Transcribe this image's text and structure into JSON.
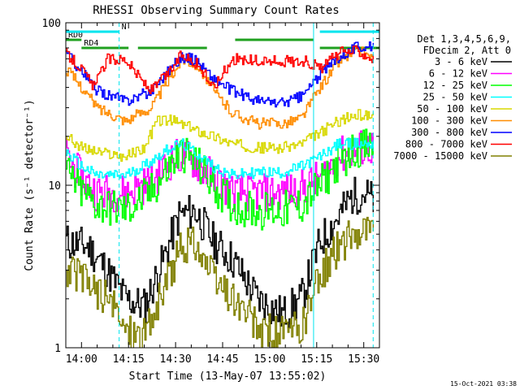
{
  "chart_data": {
    "type": "line",
    "title": "RHESSI Observing Summary Count Rates",
    "xlabel": "Start Time (13-May-07 13:55:02)",
    "ylabel": "Count Rate (s⁻¹ detector⁻¹)",
    "y_scale": "log",
    "ylim": [
      1,
      100
    ],
    "xlim": [
      "13:55",
      "15:35"
    ],
    "x_ticks": [
      "14:00",
      "14:15",
      "14:30",
      "14:45",
      "15:00",
      "15:15",
      "15:30"
    ],
    "y_ticks": [
      "1",
      "10",
      "100"
    ],
    "legend_header": [
      "Det 1,3,4,5,6,9,",
      "FDecim 2, Att 0"
    ],
    "legend_position": "top-right",
    "timestamp": "15-Oct-2021 03:38",
    "flags": [
      {
        "name": "RD0",
        "from": "13:55",
        "to": "14:00",
        "row": 1,
        "color": "#1fa01f"
      },
      {
        "name": "RD4",
        "from": "14:00",
        "to": "14:15",
        "row": 2,
        "color": "#1fa01f"
      },
      {
        "name": "",
        "from": "14:18",
        "to": "14:40",
        "row": 2,
        "color": "#1fa01f"
      },
      {
        "name": "",
        "from": "14:49",
        "to": "15:14",
        "row": 1,
        "color": "#1fa01f"
      },
      {
        "name": "",
        "from": "15:16",
        "to": "15:35",
        "row": 2,
        "color": "#1fa01f"
      },
      {
        "name": "N",
        "from": "13:55",
        "to": "14:12",
        "row": 0,
        "color": "#00e5ee"
      },
      {
        "name": "",
        "from": "15:16",
        "to": "15:35",
        "row": 0,
        "color": "#00e5ee"
      }
    ],
    "vlines": [
      {
        "time": "14:12",
        "color": "#00e5ee",
        "dash": true
      },
      {
        "time": "15:33",
        "color": "#00e5ee",
        "dash": true
      },
      {
        "time": "13:55",
        "color": "#00e5ee",
        "dash": false
      },
      {
        "time": "15:14",
        "color": "#00e5ee",
        "dash": false
      }
    ],
    "series": [
      {
        "name": "3 - 6 keV",
        "color": "#000000",
        "x": [
          "13:55",
          "14:02",
          "14:08",
          "14:14",
          "14:20",
          "14:26",
          "14:31",
          "14:36",
          "14:42",
          "14:48",
          "14:56",
          "15:04",
          "15:10",
          "15:16",
          "15:22",
          "15:26",
          "15:30",
          "15:33"
        ],
        "y": [
          4.5,
          4.2,
          3.0,
          2.0,
          1.8,
          3.5,
          6.5,
          7.0,
          4.5,
          3.5,
          2.0,
          1.6,
          2.0,
          4.5,
          6.5,
          8.5,
          9.0,
          8.0
        ]
      },
      {
        "name": "6 - 12 keV",
        "color": "#ff00ff",
        "x": [
          "13:55",
          "14:00",
          "14:05",
          "14:14",
          "14:22",
          "14:28",
          "14:32",
          "14:36",
          "14:42",
          "14:48",
          "14:56",
          "15:04",
          "15:10",
          "15:16",
          "15:22",
          "15:28",
          "15:33"
        ],
        "y": [
          15,
          11,
          9.0,
          9.0,
          10.5,
          14,
          15.5,
          14,
          11,
          9.0,
          9.0,
          9.0,
          9.5,
          11,
          15,
          17,
          17
        ]
      },
      {
        "name": "12 - 25 keV",
        "color": "#00ff00",
        "x": [
          "13:55",
          "14:00",
          "14:05",
          "14:14",
          "14:22",
          "14:28",
          "14:32",
          "14:36",
          "14:42",
          "14:48",
          "14:56",
          "15:04",
          "15:10",
          "15:16",
          "15:22",
          "15:28",
          "15:33"
        ],
        "y": [
          12,
          9.0,
          7.5,
          7.0,
          9.0,
          13,
          16,
          14,
          10,
          7.5,
          7.0,
          7.0,
          7.5,
          10,
          14,
          17,
          17
        ]
      },
      {
        "name": "25 - 50 keV",
        "color": "#00ffff",
        "x": [
          "13:55",
          "14:00",
          "14:05",
          "14:14",
          "14:22",
          "14:28",
          "14:32",
          "14:36",
          "14:42",
          "14:48",
          "14:56",
          "15:04",
          "15:10",
          "15:16",
          "15:22",
          "15:28",
          "15:33"
        ],
        "y": [
          16,
          13,
          11.5,
          11.5,
          14,
          17,
          18,
          16,
          13,
          11.5,
          12,
          12,
          13,
          15,
          18,
          18,
          18
        ]
      },
      {
        "name": "50 - 100 keV",
        "color": "#d8d800",
        "x": [
          "13:55",
          "14:00",
          "14:05",
          "14:14",
          "14:20",
          "14:24",
          "14:29",
          "14:36",
          "14:42",
          "14:48",
          "14:56",
          "15:04",
          "15:10",
          "15:16",
          "15:22",
          "15:28",
          "15:33"
        ],
        "y": [
          20,
          17,
          16,
          15,
          17,
          25,
          25,
          22,
          20,
          18,
          17,
          17,
          18,
          21,
          25,
          27,
          27
        ]
      },
      {
        "name": "100 - 300 keV",
        "color": "#ff8c00",
        "x": [
          "13:55",
          "14:00",
          "14:05",
          "14:14",
          "14:22",
          "14:28",
          "14:32",
          "14:37",
          "14:42",
          "14:48",
          "14:56",
          "15:04",
          "15:10",
          "15:16",
          "15:22",
          "15:28",
          "15:33"
        ],
        "y": [
          52,
          40,
          30,
          25,
          30,
          45,
          60,
          55,
          38,
          28,
          24,
          24,
          26,
          40,
          58,
          68,
          60
        ]
      },
      {
        "name": "300 - 800 keV",
        "color": "#0000ff",
        "x": [
          "13:55",
          "14:00",
          "14:05",
          "14:14",
          "14:22",
          "14:28",
          "14:32",
          "14:37",
          "14:42",
          "14:48",
          "14:56",
          "15:04",
          "15:10",
          "15:16",
          "15:22",
          "15:28",
          "15:33"
        ],
        "y": [
          65,
          50,
          38,
          33,
          38,
          52,
          62,
          58,
          45,
          38,
          33,
          32,
          35,
          48,
          62,
          72,
          70
        ]
      },
      {
        "name": "800 - 7000 keV",
        "color": "#ff0000",
        "x": [
          "13:55",
          "13:59",
          "14:04",
          "14:08",
          "14:14",
          "14:17",
          "14:22",
          "14:28",
          "14:32",
          "14:37",
          "14:42",
          "14:48",
          "14:56",
          "15:04",
          "15:12",
          "15:16",
          "15:22",
          "15:28",
          "15:33"
        ],
        "y": [
          65,
          55,
          40,
          60,
          60,
          50,
          38,
          50,
          65,
          55,
          40,
          60,
          58,
          58,
          58,
          52,
          65,
          68,
          60
        ]
      },
      {
        "name": "7000 - 15000 keV",
        "color": "#808000",
        "x": [
          "13:55",
          "14:02",
          "14:08",
          "14:14",
          "14:20",
          "14:26",
          "14:31",
          "14:36",
          "14:42",
          "14:48",
          "14:56",
          "15:04",
          "15:10",
          "15:16",
          "15:22",
          "15:26",
          "15:30",
          "15:33"
        ],
        "y": [
          3.0,
          2.5,
          2.0,
          1.3,
          1.2,
          2.2,
          4.0,
          4.5,
          2.6,
          2.0,
          1.3,
          1.2,
          1.3,
          2.8,
          4.2,
          5.0,
          5.5,
          5.0
        ]
      }
    ]
  }
}
